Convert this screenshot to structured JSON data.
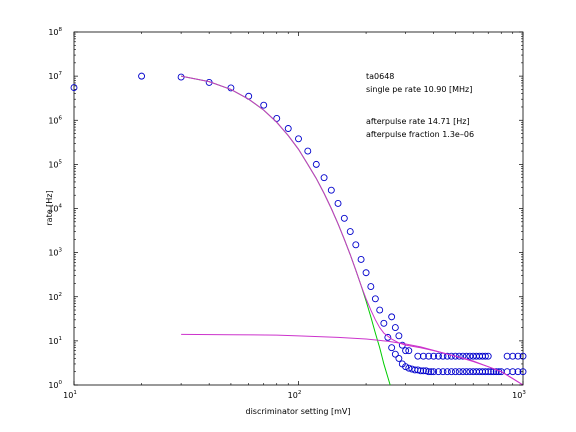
{
  "chart_data": {
    "type": "scatter",
    "title": "",
    "xlabel": "discriminator setting [mV]",
    "ylabel": "rate [Hz]",
    "xscale": "log",
    "yscale": "log",
    "xlim": [
      10,
      1000
    ],
    "ylim": [
      1,
      100000000
    ],
    "x_ticks": [
      {
        "base": "10",
        "exp": "1",
        "value": 10
      },
      {
        "base": "10",
        "exp": "2",
        "value": 100
      },
      {
        "base": "10",
        "exp": "3",
        "value": 1000
      }
    ],
    "y_ticks": [
      {
        "base": "10",
        "exp": "0",
        "value": 1
      },
      {
        "base": "10",
        "exp": "1",
        "value": 10
      },
      {
        "base": "10",
        "exp": "2",
        "value": 100
      },
      {
        "base": "10",
        "exp": "3",
        "value": 1000
      },
      {
        "base": "10",
        "exp": "4",
        "value": 10000
      },
      {
        "base": "10",
        "exp": "5",
        "value": 100000
      },
      {
        "base": "10",
        "exp": "6",
        "value": 1000000
      },
      {
        "base": "10",
        "exp": "7",
        "value": 10000000
      },
      {
        "base": "10",
        "exp": "8",
        "value": 100000000
      }
    ],
    "grid": false,
    "annotations": [
      "ta0648",
      "single pe rate 10.90 [MHz]",
      "afterpulse rate 14.71 [Hz]",
      "afterpulse fraction 1.3e–06"
    ],
    "series": [
      {
        "kind": "points",
        "marker": "circle-open",
        "color": "#0000cc",
        "points": [
          [
            10,
            5500000
          ],
          [
            20,
            10000000
          ],
          [
            30,
            9500000
          ],
          [
            40,
            7200000
          ],
          [
            50,
            5400000
          ],
          [
            60,
            3500000
          ],
          [
            70,
            2200000
          ],
          [
            80,
            1100000
          ],
          [
            90,
            650000
          ],
          [
            100,
            380000
          ],
          [
            110,
            200000
          ],
          [
            120,
            100000
          ],
          [
            130,
            50000
          ],
          [
            140,
            26000
          ],
          [
            150,
            13000
          ],
          [
            160,
            6000
          ],
          [
            170,
            3000
          ],
          [
            180,
            1500
          ],
          [
            190,
            700
          ],
          [
            200,
            350
          ],
          [
            210,
            170
          ],
          [
            220,
            90
          ],
          [
            230,
            50
          ],
          [
            240,
            25
          ],
          [
            250,
            12
          ],
          [
            260,
            7
          ],
          [
            270,
            5
          ],
          [
            280,
            4
          ],
          [
            290,
            3
          ],
          [
            300,
            2.6
          ],
          [
            310,
            2.4
          ],
          [
            320,
            2.3
          ],
          [
            330,
            2.2
          ],
          [
            340,
            2.2
          ],
          [
            350,
            2.1
          ],
          [
            360,
            2.1
          ],
          [
            370,
            2.1
          ],
          [
            380,
            2.0
          ],
          [
            390,
            2.0
          ],
          [
            400,
            2.0
          ],
          [
            420,
            2.0
          ],
          [
            440,
            2.0
          ],
          [
            460,
            2.0
          ],
          [
            480,
            2.0
          ],
          [
            500,
            2.0
          ],
          [
            520,
            2.0
          ],
          [
            540,
            2.0
          ],
          [
            560,
            2.0
          ],
          [
            580,
            2.0
          ],
          [
            600,
            2.0
          ],
          [
            620,
            2.0
          ],
          [
            640,
            2.0
          ],
          [
            660,
            2.0
          ],
          [
            680,
            2.0
          ],
          [
            700,
            2.0
          ],
          [
            720,
            2.0
          ],
          [
            740,
            2.0
          ],
          [
            760,
            2.0
          ],
          [
            780,
            2.0
          ],
          [
            800,
            2.0
          ],
          [
            850,
            2.0
          ],
          [
            900,
            2.0
          ],
          [
            950,
            2.0
          ],
          [
            1000,
            2.0
          ],
          [
            340,
            4.5
          ],
          [
            360,
            4.5
          ],
          [
            380,
            4.5
          ],
          [
            400,
            4.5
          ],
          [
            420,
            4.5
          ],
          [
            440,
            4.5
          ],
          [
            460,
            4.5
          ],
          [
            480,
            4.5
          ],
          [
            500,
            4.5
          ],
          [
            520,
            4.5
          ],
          [
            540,
            4.5
          ],
          [
            560,
            4.5
          ],
          [
            580,
            4.5
          ],
          [
            600,
            4.5
          ],
          [
            620,
            4.5
          ],
          [
            640,
            4.5
          ],
          [
            660,
            4.5
          ],
          [
            680,
            4.5
          ],
          [
            700,
            4.5
          ],
          [
            850,
            4.5
          ],
          [
            900,
            4.5
          ],
          [
            950,
            4.5
          ],
          [
            1000,
            4.5
          ],
          [
            260,
            35
          ],
          [
            270,
            20
          ],
          [
            280,
            13
          ],
          [
            290,
            8
          ],
          [
            300,
            6
          ],
          [
            310,
            6
          ]
        ]
      },
      {
        "kind": "line",
        "color": "#00cc00",
        "points": [
          [
            30,
            10000000
          ],
          [
            40,
            7500000
          ],
          [
            50,
            5000000
          ],
          [
            60,
            3000000
          ],
          [
            70,
            1700000
          ],
          [
            80,
            900000
          ],
          [
            90,
            450000
          ],
          [
            100,
            220000
          ],
          [
            110,
            100000
          ],
          [
            120,
            48000
          ],
          [
            130,
            22000
          ],
          [
            140,
            10000
          ],
          [
            150,
            4500
          ],
          [
            160,
            2000
          ],
          [
            170,
            900
          ],
          [
            180,
            400
          ],
          [
            190,
            180
          ],
          [
            200,
            80
          ],
          [
            210,
            35
          ],
          [
            220,
            15
          ],
          [
            230,
            7
          ],
          [
            240,
            3
          ],
          [
            250,
            1.5
          ],
          [
            256,
            1.0
          ]
        ]
      },
      {
        "kind": "line",
        "color": "#cc33cc",
        "points": [
          [
            30,
            10000000
          ],
          [
            40,
            7500000
          ],
          [
            50,
            5000000
          ],
          [
            60,
            3000000
          ],
          [
            70,
            1700000
          ],
          [
            80,
            900000
          ],
          [
            90,
            450000
          ],
          [
            100,
            220000
          ],
          [
            110,
            100000
          ],
          [
            120,
            48000
          ],
          [
            130,
            22000
          ],
          [
            140,
            10000
          ],
          [
            150,
            4500
          ],
          [
            160,
            2000
          ],
          [
            170,
            900
          ],
          [
            180,
            400
          ],
          [
            190,
            180
          ],
          [
            200,
            90
          ],
          [
            210,
            50
          ],
          [
            220,
            30
          ],
          [
            230,
            20
          ],
          [
            240,
            15
          ],
          [
            260,
            11
          ],
          [
            280,
            9
          ],
          [
            300,
            8
          ],
          [
            350,
            7
          ],
          [
            400,
            6
          ],
          [
            500,
            4.5
          ],
          [
            600,
            3.5
          ],
          [
            700,
            2.6
          ],
          [
            800,
            2.0
          ],
          [
            900,
            1.4
          ],
          [
            1000,
            1.0
          ]
        ]
      },
      {
        "kind": "line",
        "color": "#cc33cc",
        "points": [
          [
            30,
            14
          ],
          [
            50,
            13.8
          ],
          [
            80,
            13.5
          ],
          [
            100,
            13
          ],
          [
            150,
            12
          ],
          [
            200,
            11
          ],
          [
            250,
            9.8
          ],
          [
            300,
            8.5
          ],
          [
            350,
            7.3
          ],
          [
            400,
            6.1
          ],
          [
            500,
            4.5
          ],
          [
            600,
            3.4
          ],
          [
            700,
            2.6
          ],
          [
            800,
            2.0
          ],
          [
            900,
            1.4
          ],
          [
            1000,
            1.0
          ]
        ]
      }
    ]
  }
}
